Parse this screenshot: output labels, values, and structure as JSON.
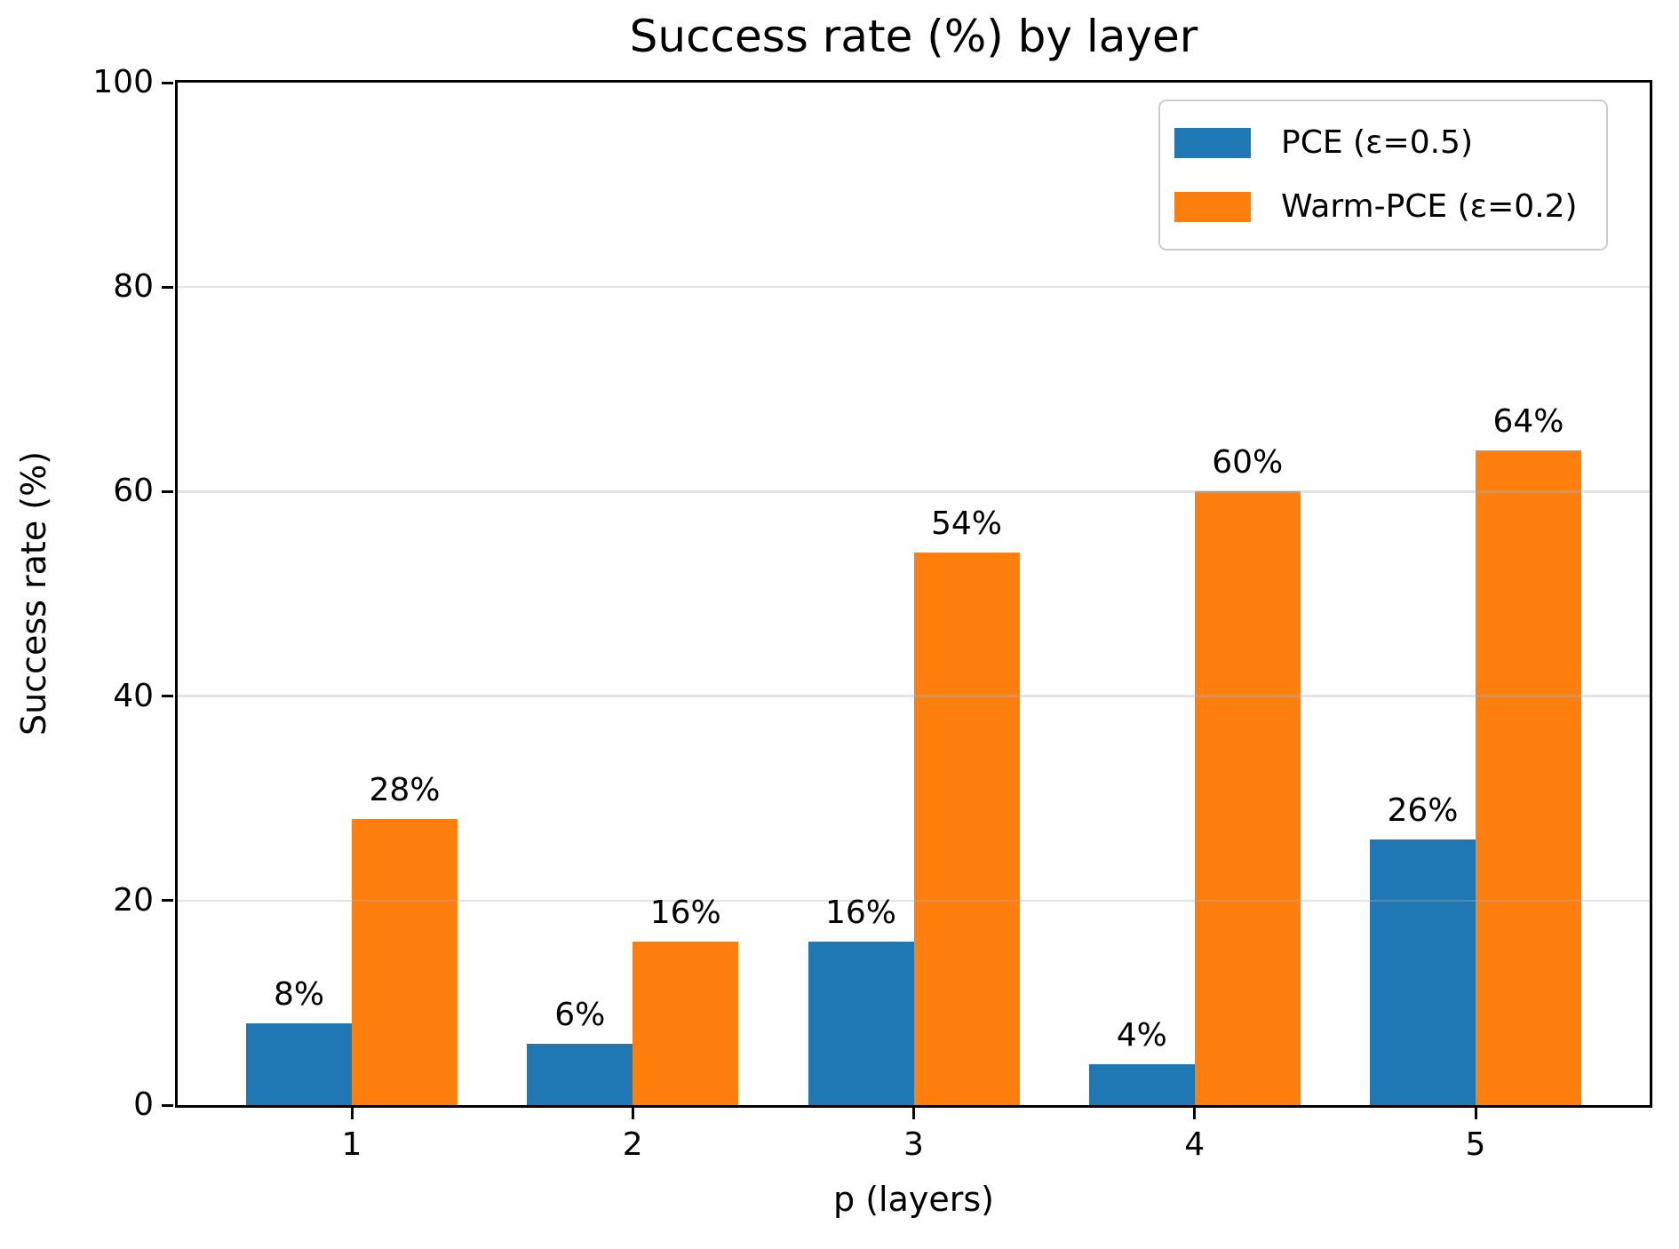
{
  "chart_data": {
    "type": "bar",
    "title": "Success rate (%) by layer",
    "xlabel": "p (layers)",
    "ylabel": "Success rate (%)",
    "categories": [
      "1",
      "2",
      "3",
      "4",
      "5"
    ],
    "series": [
      {
        "name": "PCE (ε=0.5)",
        "color": "#1f77b4",
        "values": [
          8,
          6,
          16,
          4,
          26
        ],
        "bar_labels": [
          "8%",
          "6%",
          "16%",
          "4%",
          "26%"
        ]
      },
      {
        "name": "Warm-PCE (ε=0.2)",
        "color": "#ff7f0e",
        "values": [
          28,
          16,
          54,
          60,
          64
        ],
        "bar_labels": [
          "28%",
          "16%",
          "54%",
          "60%",
          "64%"
        ]
      }
    ],
    "ylim": [
      0,
      100
    ],
    "yticks": [
      "0",
      "20",
      "40",
      "60",
      "80",
      "100"
    ],
    "ytick_values": [
      0,
      20,
      40,
      60,
      80,
      100
    ],
    "gridline_values": [
      20,
      40,
      60,
      80
    ],
    "grid": "horizontal, drawn above bars",
    "legend_position": "upper right"
  }
}
